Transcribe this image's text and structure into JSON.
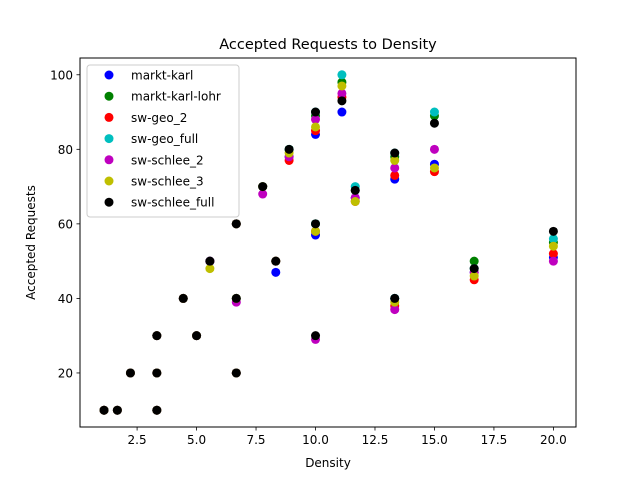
{
  "chart_data": {
    "type": "scatter",
    "title": "Accepted Requests to Density",
    "xlabel": "Density",
    "ylabel": "Accepted Requests",
    "xlim": [
      0.1,
      20.95
    ],
    "ylim": [
      5.5,
      104.5
    ],
    "xticks": [
      2.5,
      5.0,
      7.5,
      10.0,
      12.5,
      15.0,
      17.5,
      20.0
    ],
    "xtick_labels": [
      "2.5",
      "5.0",
      "7.5",
      "10.0",
      "12.5",
      "15.0",
      "17.5",
      "20.0"
    ],
    "yticks": [
      20,
      40,
      60,
      80,
      100
    ],
    "ytick_labels": [
      "20",
      "40",
      "60",
      "80",
      "100"
    ],
    "grid": false,
    "legend_position": "upper-left",
    "series": [
      {
        "name": "markt-karl",
        "color": "#0000ff",
        "points": [
          [
            1.11,
            10
          ],
          [
            1.67,
            10
          ],
          [
            2.22,
            20
          ],
          [
            3.33,
            10
          ],
          [
            3.33,
            20
          ],
          [
            3.33,
            30
          ],
          [
            4.44,
            40
          ],
          [
            5.0,
            30
          ],
          [
            5.56,
            50
          ],
          [
            6.67,
            20
          ],
          [
            6.67,
            40
          ],
          [
            6.67,
            60
          ],
          [
            7.78,
            70
          ],
          [
            8.33,
            47
          ],
          [
            8.89,
            78
          ],
          [
            10.0,
            57
          ],
          [
            10.0,
            84
          ],
          [
            11.11,
            90
          ],
          [
            11.67,
            67
          ],
          [
            13.33,
            40
          ],
          [
            13.33,
            72
          ],
          [
            15.0,
            76
          ],
          [
            16.67,
            47
          ],
          [
            20.0,
            51
          ]
        ]
      },
      {
        "name": "markt-karl-lohr",
        "color": "#008000",
        "points": [
          [
            1.11,
            10
          ],
          [
            1.67,
            10
          ],
          [
            2.22,
            20
          ],
          [
            3.33,
            10
          ],
          [
            3.33,
            20
          ],
          [
            3.33,
            30
          ],
          [
            4.44,
            40
          ],
          [
            5.0,
            30
          ],
          [
            5.56,
            50
          ],
          [
            6.67,
            20
          ],
          [
            6.67,
            40
          ],
          [
            6.67,
            60
          ],
          [
            7.78,
            70
          ],
          [
            8.33,
            50
          ],
          [
            8.89,
            80
          ],
          [
            10.0,
            60
          ],
          [
            10.0,
            89
          ],
          [
            11.11,
            98
          ],
          [
            11.67,
            69
          ],
          [
            13.33,
            40
          ],
          [
            13.33,
            78
          ],
          [
            15.0,
            89
          ],
          [
            16.67,
            50
          ],
          [
            20.0,
            55
          ]
        ]
      },
      {
        "name": "sw-geo_2",
        "color": "#ff0000",
        "points": [
          [
            1.11,
            10
          ],
          [
            1.67,
            10
          ],
          [
            2.22,
            20
          ],
          [
            3.33,
            10
          ],
          [
            3.33,
            20
          ],
          [
            3.33,
            30
          ],
          [
            4.44,
            40
          ],
          [
            5.0,
            30
          ],
          [
            5.56,
            50
          ],
          [
            6.67,
            20
          ],
          [
            6.67,
            40
          ],
          [
            6.67,
            60
          ],
          [
            7.78,
            70
          ],
          [
            8.33,
            50
          ],
          [
            8.89,
            77
          ],
          [
            10.0,
            58
          ],
          [
            10.0,
            85
          ],
          [
            11.11,
            94
          ],
          [
            11.67,
            66
          ],
          [
            13.33,
            38
          ],
          [
            13.33,
            73
          ],
          [
            15.0,
            74
          ],
          [
            16.67,
            45
          ],
          [
            20.0,
            52
          ]
        ]
      },
      {
        "name": "sw-geo_full",
        "color": "#00bfbf",
        "points": [
          [
            1.11,
            10
          ],
          [
            1.67,
            10
          ],
          [
            2.22,
            20
          ],
          [
            3.33,
            10
          ],
          [
            3.33,
            20
          ],
          [
            3.33,
            30
          ],
          [
            4.44,
            40
          ],
          [
            5.0,
            30
          ],
          [
            5.56,
            50
          ],
          [
            6.67,
            20
          ],
          [
            6.67,
            40
          ],
          [
            6.67,
            60
          ],
          [
            7.78,
            70
          ],
          [
            8.33,
            50
          ],
          [
            8.89,
            80
          ],
          [
            10.0,
            60
          ],
          [
            10.0,
            90
          ],
          [
            11.11,
            100
          ],
          [
            11.67,
            70
          ],
          [
            13.33,
            40
          ],
          [
            13.33,
            79
          ],
          [
            15.0,
            90
          ],
          [
            16.67,
            48
          ],
          [
            20.0,
            56
          ]
        ]
      },
      {
        "name": "sw-schlee_2",
        "color": "#bf00bf",
        "points": [
          [
            1.11,
            10
          ],
          [
            1.67,
            10
          ],
          [
            2.22,
            20
          ],
          [
            3.33,
            10
          ],
          [
            3.33,
            20
          ],
          [
            3.33,
            30
          ],
          [
            4.44,
            40
          ],
          [
            5.0,
            30
          ],
          [
            5.56,
            50
          ],
          [
            6.67,
            20
          ],
          [
            6.67,
            39
          ],
          [
            6.67,
            60
          ],
          [
            7.78,
            68
          ],
          [
            8.33,
            50
          ],
          [
            8.89,
            78
          ],
          [
            10.0,
            29
          ],
          [
            10.0,
            88
          ],
          [
            11.11,
            95
          ],
          [
            11.67,
            67
          ],
          [
            13.33,
            37
          ],
          [
            13.33,
            75
          ],
          [
            15.0,
            80
          ],
          [
            16.67,
            47
          ],
          [
            20.0,
            50
          ]
        ]
      },
      {
        "name": "sw-schlee_3",
        "color": "#bfbf00",
        "points": [
          [
            1.11,
            10
          ],
          [
            1.67,
            10
          ],
          [
            2.22,
            20
          ],
          [
            3.33,
            10
          ],
          [
            3.33,
            20
          ],
          [
            3.33,
            30
          ],
          [
            4.44,
            40
          ],
          [
            5.0,
            30
          ],
          [
            5.56,
            48
          ],
          [
            6.67,
            20
          ],
          [
            6.67,
            40
          ],
          [
            6.67,
            60
          ],
          [
            7.78,
            70
          ],
          [
            8.33,
            50
          ],
          [
            8.89,
            79
          ],
          [
            10.0,
            58
          ],
          [
            10.0,
            86
          ],
          [
            11.11,
            97
          ],
          [
            11.67,
            66
          ],
          [
            13.33,
            39
          ],
          [
            13.33,
            77
          ],
          [
            15.0,
            75
          ],
          [
            16.67,
            46
          ],
          [
            20.0,
            54
          ]
        ]
      },
      {
        "name": "sw-schlee_full",
        "color": "#000000",
        "points": [
          [
            1.11,
            10
          ],
          [
            1.67,
            10
          ],
          [
            2.22,
            20
          ],
          [
            3.33,
            10
          ],
          [
            3.33,
            20
          ],
          [
            3.33,
            30
          ],
          [
            4.44,
            40
          ],
          [
            5.0,
            30
          ],
          [
            5.56,
            50
          ],
          [
            6.67,
            20
          ],
          [
            6.67,
            40
          ],
          [
            6.67,
            60
          ],
          [
            7.78,
            70
          ],
          [
            8.33,
            50
          ],
          [
            8.89,
            80
          ],
          [
            10.0,
            30
          ],
          [
            10.0,
            60
          ],
          [
            10.0,
            90
          ],
          [
            11.11,
            93
          ],
          [
            11.67,
            69
          ],
          [
            13.33,
            40
          ],
          [
            13.33,
            79
          ],
          [
            15.0,
            87
          ],
          [
            16.67,
            48
          ],
          [
            20.0,
            58
          ]
        ]
      }
    ]
  }
}
